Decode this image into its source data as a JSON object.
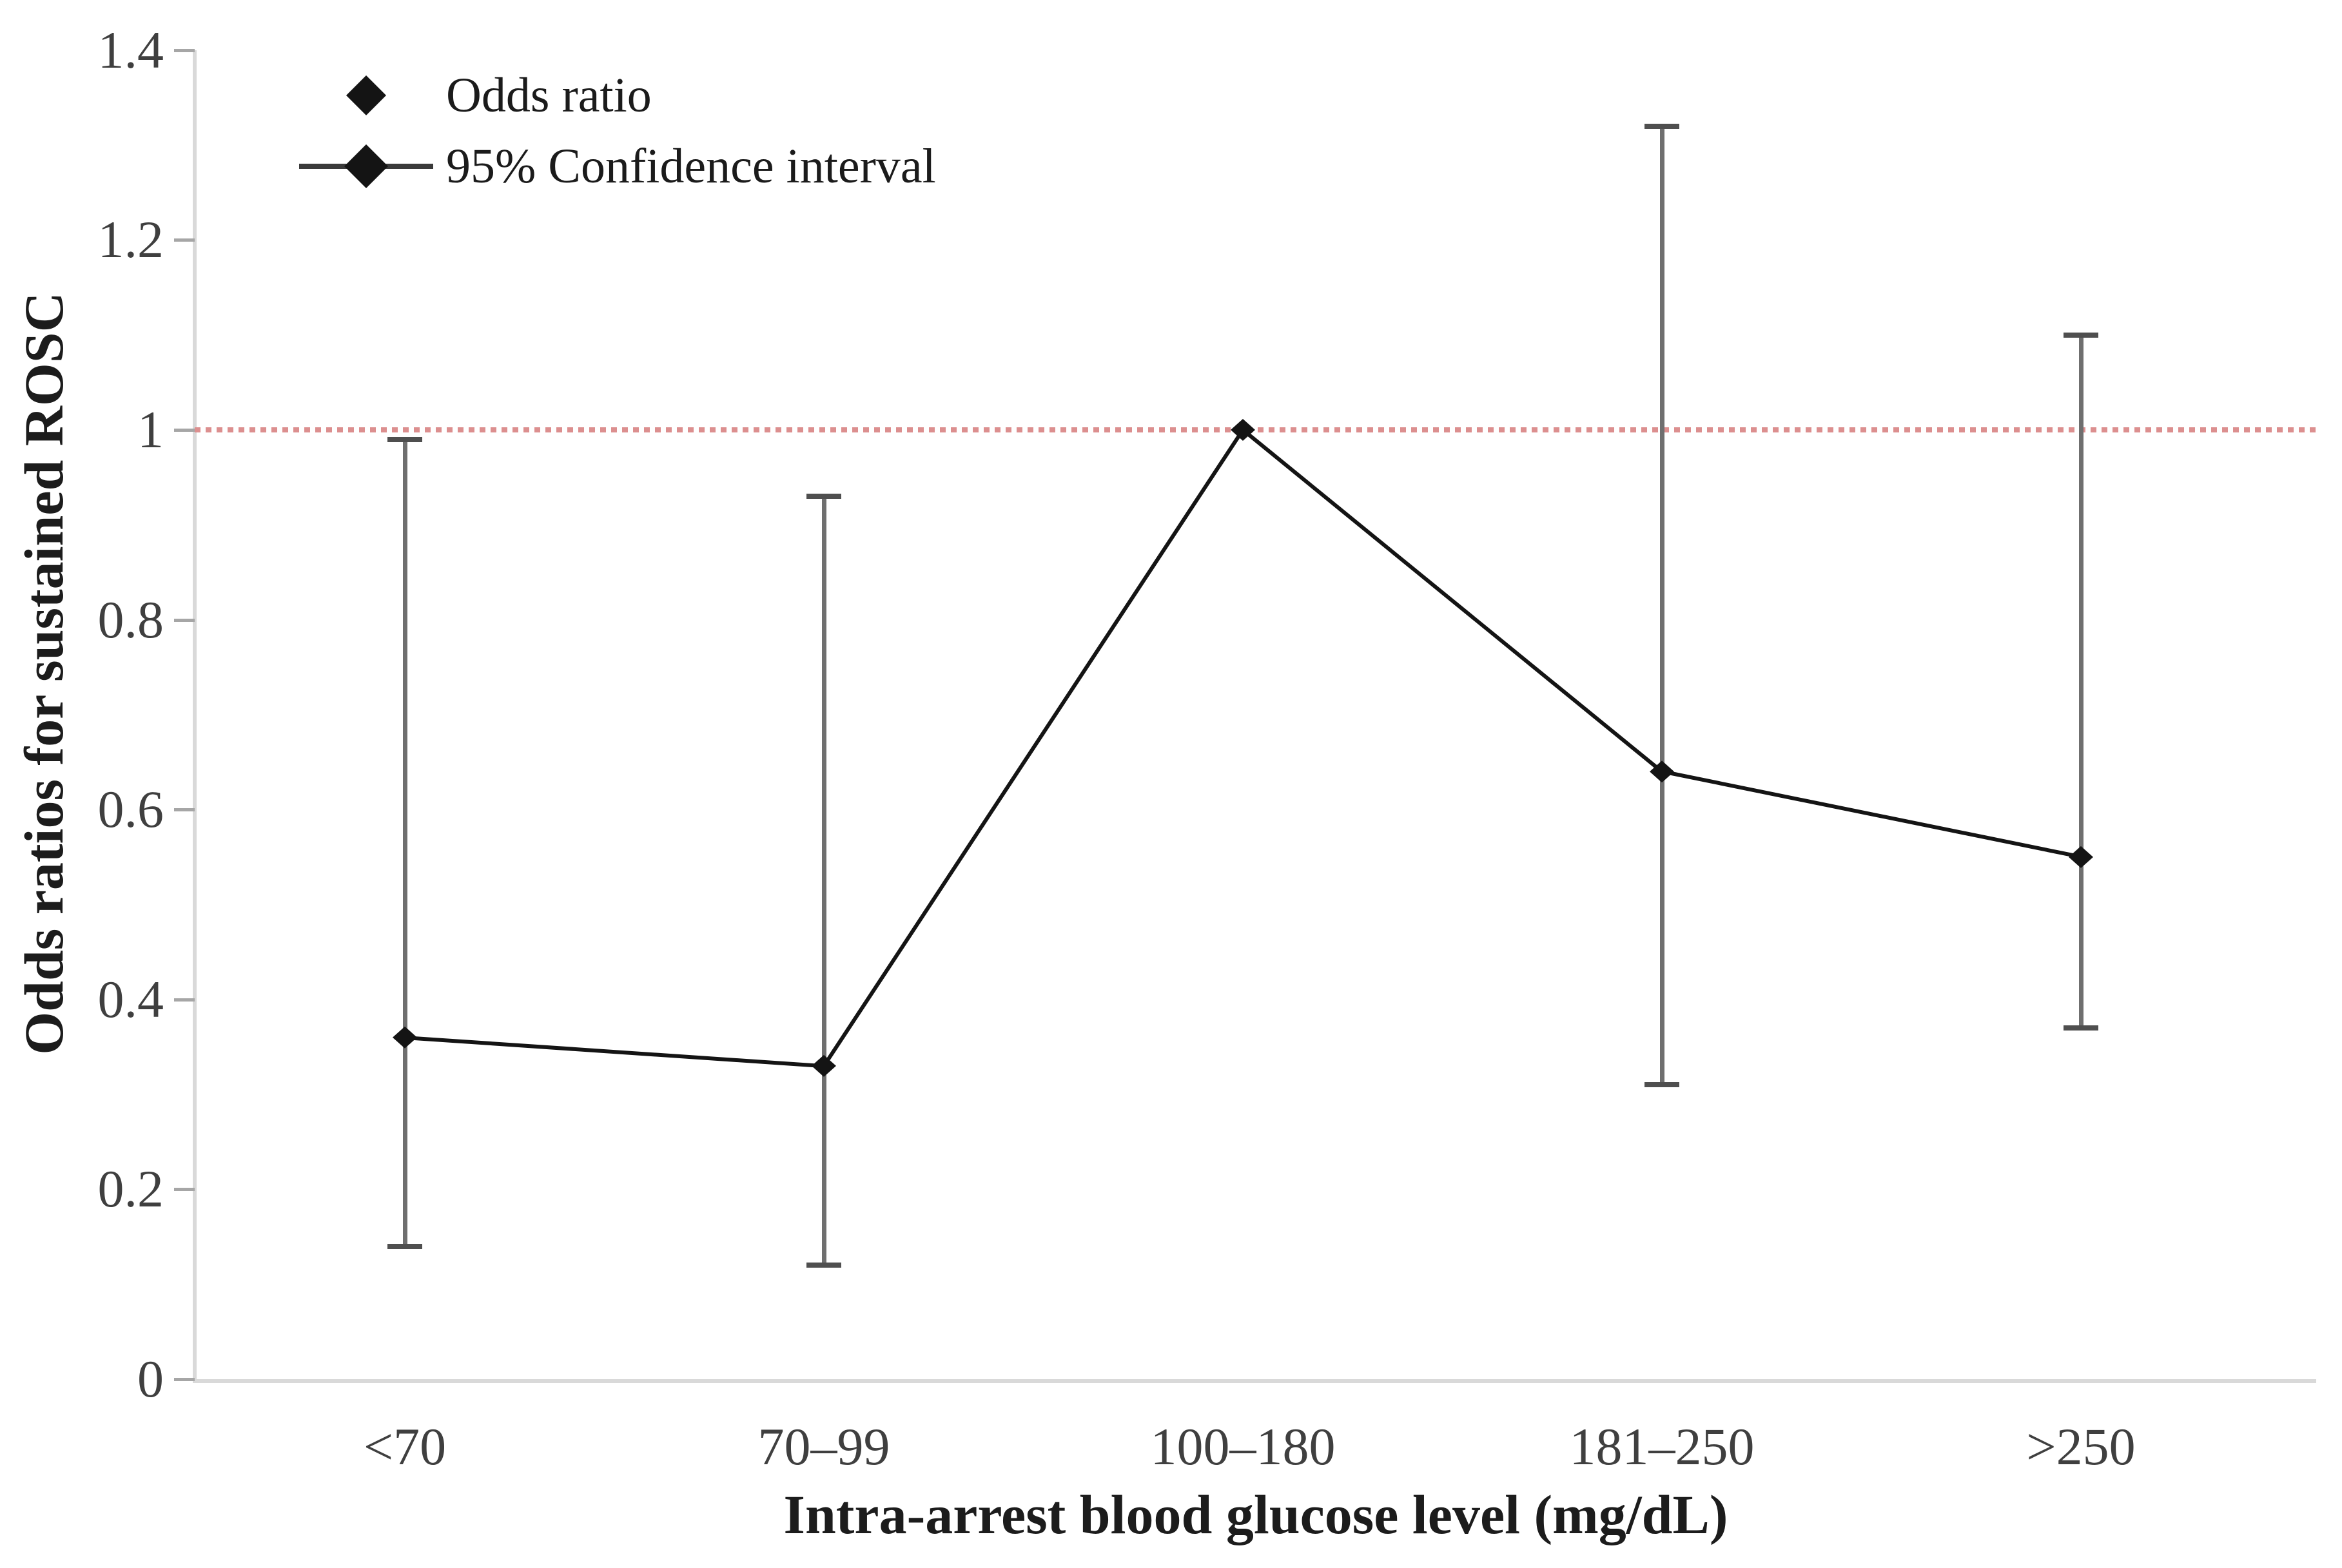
{
  "chart_data": {
    "type": "line",
    "title": "",
    "categories": [
      "<70",
      "70–99",
      "100–180",
      "181–250",
      ">250"
    ],
    "series": [
      {
        "name": "Odds ratio",
        "values": [
          0.36,
          0.33,
          1.0,
          0.64,
          0.55
        ],
        "ci_lower": [
          0.14,
          0.12,
          null,
          0.31,
          0.37
        ],
        "ci_upper": [
          0.99,
          0.93,
          null,
          1.32,
          1.1
        ]
      }
    ],
    "xlabel": "Intra-arrest blood glucose level (mg/dL)",
    "ylabel": "Odds ratios for sustained ROSC",
    "ylim": [
      0,
      1.4
    ],
    "yticks": [
      "0",
      "0.2",
      "0.4",
      "0.6",
      "0.8",
      "1",
      "1.2",
      "1.4"
    ],
    "grid": false,
    "reference_line": {
      "y": 1.0,
      "style": "dotted"
    },
    "legend_position": "top-left-inside",
    "legend": [
      {
        "label": "Odds ratio",
        "marker": "diamond"
      },
      {
        "label": "95% Confidence interval",
        "marker": "line-with-diamond"
      }
    ]
  },
  "colors": {
    "marker": "#141414",
    "series_line": "#141414",
    "error_bar_line": "#6f6f6f",
    "error_bar_cap": "#4f4f4f",
    "axis_line": "#d9d9d9",
    "tick_mark": "#a6a6a6",
    "tick_label": "#3f3f3f",
    "reference_line": "#dc8f8f",
    "legend_line": "#3a3a3a"
  }
}
